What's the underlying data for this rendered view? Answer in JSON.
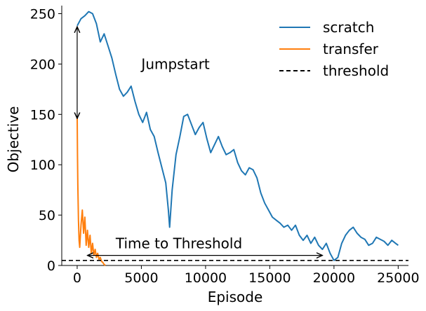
{
  "chart_data": {
    "type": "line",
    "title": "",
    "xlabel": "Episode",
    "ylabel": "Objective",
    "xlim": [
      -1200,
      25800
    ],
    "ylim": [
      0,
      258
    ],
    "xticks": [
      0,
      5000,
      10000,
      15000,
      20000,
      25000
    ],
    "yticks": [
      0,
      50,
      100,
      150,
      200,
      250
    ],
    "grid": false,
    "legend_position": "top-right",
    "colors": {
      "scratch": "#1f77b4",
      "transfer": "#ff7f0e",
      "threshold": "#000000"
    },
    "legend": [
      "scratch",
      "transfer",
      "threshold"
    ],
    "series": [
      {
        "name": "scratch",
        "x": [
          0,
          300,
          600,
          900,
          1200,
          1500,
          1800,
          2100,
          2400,
          2700,
          3000,
          3300,
          3600,
          3900,
          4200,
          4500,
          4800,
          5100,
          5400,
          5700,
          6000,
          6300,
          6600,
          6900,
          7100,
          7200,
          7400,
          7700,
          8000,
          8300,
          8600,
          8900,
          9200,
          9500,
          9800,
          10100,
          10400,
          10700,
          11000,
          11300,
          11600,
          11900,
          12200,
          12500,
          12800,
          13100,
          13400,
          13700,
          14000,
          14300,
          14600,
          14900,
          15200,
          15500,
          15800,
          16100,
          16400,
          16700,
          17000,
          17300,
          17600,
          17900,
          18200,
          18500,
          18800,
          19100,
          19400,
          19700,
          20000,
          20300,
          20600,
          20900,
          21200,
          21500,
          21800,
          22100,
          22400,
          22700,
          23000,
          23300,
          23600,
          23900,
          24200,
          24500,
          24800,
          25000
        ],
        "values": [
          238,
          245,
          248,
          252,
          250,
          240,
          222,
          230,
          218,
          206,
          190,
          175,
          168,
          172,
          178,
          163,
          150,
          142,
          152,
          135,
          128,
          112,
          97,
          82,
          55,
          38,
          75,
          110,
          128,
          148,
          150,
          140,
          130,
          137,
          142,
          126,
          112,
          120,
          128,
          118,
          110,
          112,
          115,
          102,
          94,
          90,
          97,
          95,
          87,
          72,
          62,
          55,
          48,
          45,
          42,
          38,
          40,
          35,
          40,
          30,
          25,
          30,
          22,
          28,
          20,
          16,
          22,
          12,
          5,
          8,
          22,
          30,
          35,
          38,
          32,
          28,
          26,
          20,
          22,
          28,
          26,
          24,
          20,
          25,
          22,
          20
        ]
      },
      {
        "name": "transfer",
        "x": [
          0,
          25,
          50,
          100,
          150,
          200,
          300,
          400,
          500,
          600,
          700,
          800,
          900,
          1000,
          1100,
          1200,
          1300,
          1400,
          1500,
          1600,
          1700,
          1800,
          1900,
          2000,
          2100,
          2200
        ],
        "values": [
          146,
          110,
          80,
          45,
          25,
          18,
          40,
          55,
          32,
          48,
          20,
          35,
          18,
          30,
          12,
          22,
          10,
          16,
          8,
          12,
          6,
          8,
          4,
          3,
          1,
          0
        ]
      },
      {
        "name": "threshold",
        "x": [
          -1200,
          25800
        ],
        "values": [
          5,
          5
        ]
      }
    ],
    "annotations": [
      {
        "text": "Jumpstart",
        "x": 5000,
        "y": 195,
        "arrow_from": [
          0,
          237
        ],
        "arrow_to": [
          0,
          146
        ]
      },
      {
        "text": "Time to Threshold",
        "x": 3000,
        "y": 17,
        "arrow_from": [
          800,
          10
        ],
        "arrow_to": [
          19100,
          10
        ]
      }
    ]
  }
}
